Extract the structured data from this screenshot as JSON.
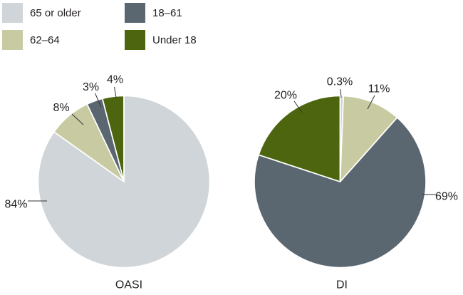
{
  "style": {
    "background": "#ffffff",
    "text_color": "#231f20",
    "leader_line_color": "#333333",
    "slice_separator_color": "#ffffff",
    "slice_colors": [
      "#cfd5d8",
      "#c8cba1",
      "#5b6770",
      "#4c650e"
    ]
  },
  "legend": {
    "items": [
      {
        "label": "65 or older",
        "color": "#cfd5d8"
      },
      {
        "label": "62–64",
        "color": "#c8cba1"
      },
      {
        "label": "18–61",
        "color": "#5b6770"
      },
      {
        "label": "Under 18",
        "color": "#4c650e"
      }
    ]
  },
  "chart_data": [
    {
      "type": "pie",
      "title": "OASI",
      "categories": [
        "65 or older",
        "62–64",
        "18–61",
        "Under 18"
      ],
      "values": [
        84,
        8,
        3,
        4
      ],
      "labels": [
        "84%",
        "8%",
        "3%",
        "4%"
      ],
      "unit": "percent",
      "start_angle_deg": 0,
      "direction": "clockwise"
    },
    {
      "type": "pie",
      "title": "DI",
      "categories": [
        "65 or older",
        "62–64",
        "18–61",
        "Under 18"
      ],
      "values": [
        0.3,
        11,
        69,
        20
      ],
      "labels": [
        "0.3%",
        "11%",
        "69%",
        "20%"
      ],
      "unit": "percent",
      "start_angle_deg": 0,
      "direction": "clockwise"
    }
  ]
}
